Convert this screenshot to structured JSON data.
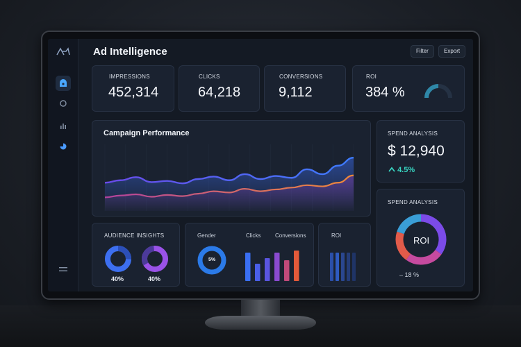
{
  "app": {
    "title": "Ad Intelligence"
  },
  "toolbar": {
    "filter_label": "Filter",
    "export_label": "Export"
  },
  "sidebar": {
    "items": [
      "dashboard",
      "audience",
      "analytics",
      "reports"
    ]
  },
  "kpis": [
    {
      "label": "IMPRESSIONS",
      "value": "452,314"
    },
    {
      "label": "CLICKS",
      "value": "64,218"
    },
    {
      "label": "CONVERSIONS",
      "value": "9,112"
    },
    {
      "label": "ROI",
      "value": "384 %",
      "gauge_fraction": 0.5
    }
  ],
  "campaign": {
    "title": "Campaign Performance",
    "chart_data": {
      "type": "area",
      "x": [
        0,
        1,
        2,
        3,
        4,
        5,
        6,
        7,
        8,
        9,
        10,
        11,
        12,
        13,
        14,
        15,
        16
      ],
      "series": [
        {
          "values": [
            44,
            48,
            53,
            45,
            47,
            43,
            50,
            54,
            48,
            58,
            50,
            55,
            52,
            66,
            58,
            72,
            85
          ],
          "color": "#3b6cf0"
        },
        {
          "values": [
            20,
            23,
            25,
            21,
            24,
            22,
            26,
            30,
            28,
            34,
            30,
            33,
            36,
            40,
            38,
            44,
            56
          ],
          "color": "#ec7b3a"
        }
      ],
      "ylim": [
        0,
        100
      ],
      "grid": true
    }
  },
  "spend": {
    "label": "SPEND ANALYSIS",
    "value": "$ 12,940",
    "change": "4.5%"
  },
  "spend2": {
    "label": "SPEND ANALYSIS",
    "center_label": "ROI",
    "change": "– 18 %",
    "chart_data": {
      "type": "pie",
      "values": [
        35,
        25,
        20,
        20
      ],
      "colors": [
        "#7b4be8",
        "#c64a9f",
        "#e25b4a",
        "#3a9ed6"
      ]
    }
  },
  "audience": {
    "title": "AUDIENCE INSIGHTS",
    "donuts": [
      {
        "value": "40%",
        "color": "#3d6ff0"
      },
      {
        "value": "40%",
        "color": "#9a52e8"
      }
    ]
  },
  "gender": {
    "label": "Gender",
    "center_value": "5%",
    "clicks_label": "Clicks",
    "conversions_label": "Conversions",
    "chart_data": {
      "type": "bar",
      "values": [
        82,
        50,
        66,
        82,
        60,
        88
      ],
      "colors": [
        "#3a6ff2",
        "#4a5fe8",
        "#5a55e0",
        "#8a4ad0",
        "#c04a7a",
        "#e35a3a"
      ]
    }
  },
  "roi_small": {
    "label": "ROI",
    "chart_data": {
      "type": "bar",
      "values": [
        82,
        82,
        82,
        82,
        82
      ]
    }
  }
}
